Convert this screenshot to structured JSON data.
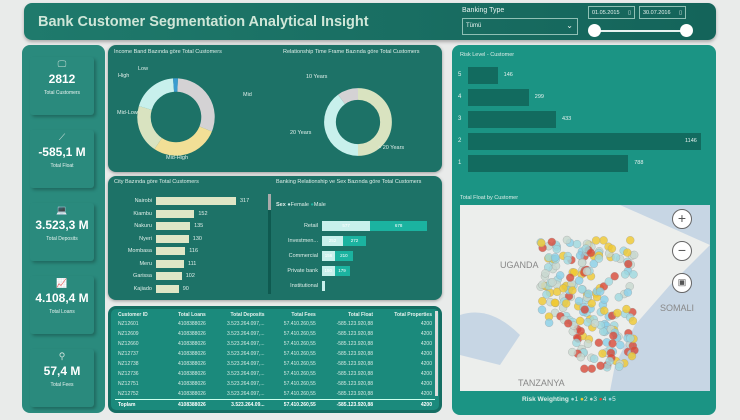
{
  "header": {
    "title": "Bank Customer Segmentation Analytical Insight",
    "banking_type_label": "Banking Type",
    "banking_type_value": "Tümü",
    "date_from": "01.05.2015",
    "date_to": "30.07.2016",
    "slider_range": [
      0,
      1
    ]
  },
  "kpis": [
    {
      "icon": "monitor-icon",
      "value": "2812",
      "label": "Total Customers"
    },
    {
      "icon": "trend-icon",
      "value": "-585,1 M",
      "label": "Total Float"
    },
    {
      "icon": "laptop-money-icon",
      "value": "3.523,3 M",
      "label": "Total Deposits"
    },
    {
      "icon": "chart-up-icon",
      "value": "4.108,4 M",
      "label": "Total Loans"
    },
    {
      "icon": "search-money-icon",
      "value": "57,4 M",
      "label": "Total Fees"
    }
  ],
  "income": {
    "title": "Income Band Bazında göre Total Customers",
    "slices": [
      {
        "label": "Mid",
        "value": 30,
        "color": "#d4d2d4"
      },
      {
        "label": "Mid-High",
        "value": 28,
        "color": "#f2df96"
      },
      {
        "label": "Mid-Low",
        "value": 20,
        "color": "#d9e3c0"
      },
      {
        "label": "High",
        "value": 19,
        "color": "#c8f0ec"
      },
      {
        "label": "Low",
        "value": 2,
        "color": "#3a9ccf"
      }
    ]
  },
  "relationship": {
    "title": "Relationship Time Frame Bazında göre Total Customers",
    "slices": [
      {
        "label": "> 20 Years",
        "value": 50,
        "color": "#d9e3c0"
      },
      {
        "label": "20 Years",
        "value": 40,
        "color": "#c8f0ec"
      },
      {
        "label": "10 Years",
        "value": 10,
        "color": "#d4d2d4"
      }
    ]
  },
  "city": {
    "title": "City Bazında göre Total Customers",
    "items": [
      {
        "label": "Nairobi",
        "value": 317
      },
      {
        "label": "Kiambu",
        "value": 152
      },
      {
        "label": "Nakuru",
        "value": 135
      },
      {
        "label": "Nyeri",
        "value": 130
      },
      {
        "label": "Mombasa",
        "value": 116
      },
      {
        "label": "Meru",
        "value": 111
      },
      {
        "label": "Garissa",
        "value": 102
      },
      {
        "label": "Kajiado",
        "value": 90
      }
    ]
  },
  "gender": {
    "title": "Banking Relationship ve Sex Bazında göre Total Customers",
    "legend_label": "Sex",
    "legend": [
      {
        "label": "Female",
        "color": "#c8f0ec"
      },
      {
        "label": "Male",
        "color": "#1bb3a0"
      }
    ],
    "items": [
      {
        "label": "Retail",
        "female": 577,
        "male": 678
      },
      {
        "label": "Investmen...",
        "female": 252,
        "male": 272
      },
      {
        "label": "Commercial",
        "female": 156,
        "male": 210
      },
      {
        "label": "Private bank",
        "female": 150,
        "male": 179
      },
      {
        "label": "Institutional",
        "female": 30,
        "male": 0
      }
    ]
  },
  "table": {
    "columns": [
      "Customer ID",
      "Total Loans",
      "Total Deposits",
      "Total Fees",
      "Total Float",
      "Total Properties"
    ],
    "rows": [
      [
        "NZ12601",
        "4108388026",
        "3.523.264.097,...",
        "57.410.260,55",
        "-585.123.920,88",
        "4200"
      ],
      [
        "NZ12609",
        "4108388026",
        "3.523.264.097,...",
        "57.410.260,55",
        "-585.123.920,88",
        "4200"
      ],
      [
        "NZ12660",
        "4108388026",
        "3.523.264.097,...",
        "57.410.260,55",
        "-585.123.920,88",
        "4200"
      ],
      [
        "NZ12737",
        "4108388026",
        "3.523.264.097,...",
        "57.410.260,55",
        "-585.123.920,88",
        "4200"
      ],
      [
        "NZ12738",
        "4108388026",
        "3.523.264.097,...",
        "57.410.260,55",
        "-585.123.920,88",
        "4200"
      ],
      [
        "NZ12736",
        "4108388026",
        "3.523.264.097,...",
        "57.410.260,55",
        "-585.123.920,88",
        "4200"
      ],
      [
        "NZ12751",
        "4108388026",
        "3.523.264.097,...",
        "57.410.260,55",
        "-585.123.920,88",
        "4200"
      ],
      [
        "NZ12752",
        "4108388026",
        "3.523.264.097,...",
        "57.410.260,55",
        "-585.123.920,88",
        "4200"
      ]
    ],
    "total": [
      "Toplam",
      "4108388026",
      "3.523.264.09...",
      "57.410.260,55",
      "-585.123.920,88",
      "4200"
    ]
  },
  "risk": {
    "title": "Risk Level - Customer",
    "items": [
      {
        "label": "5",
        "value": 146
      },
      {
        "label": "4",
        "value": 299
      },
      {
        "label": "3",
        "value": 433
      },
      {
        "label": "2",
        "value": 1146
      },
      {
        "label": "1",
        "value": 788
      }
    ]
  },
  "map": {
    "title": "Total Float by Customer",
    "labels": [
      "UGANDA",
      "TANZANYA",
      "SOMALI"
    ],
    "legend_label": "Risk Weighting",
    "legend": [
      {
        "label": "1",
        "color": "#9fd8e0"
      },
      {
        "label": "2",
        "color": "#f0c830"
      },
      {
        "label": "3",
        "color": "#c8d8d0"
      },
      {
        "label": "4",
        "color": "#d84a3a"
      },
      {
        "label": "5",
        "color": "#8ad0e8"
      }
    ]
  }
}
